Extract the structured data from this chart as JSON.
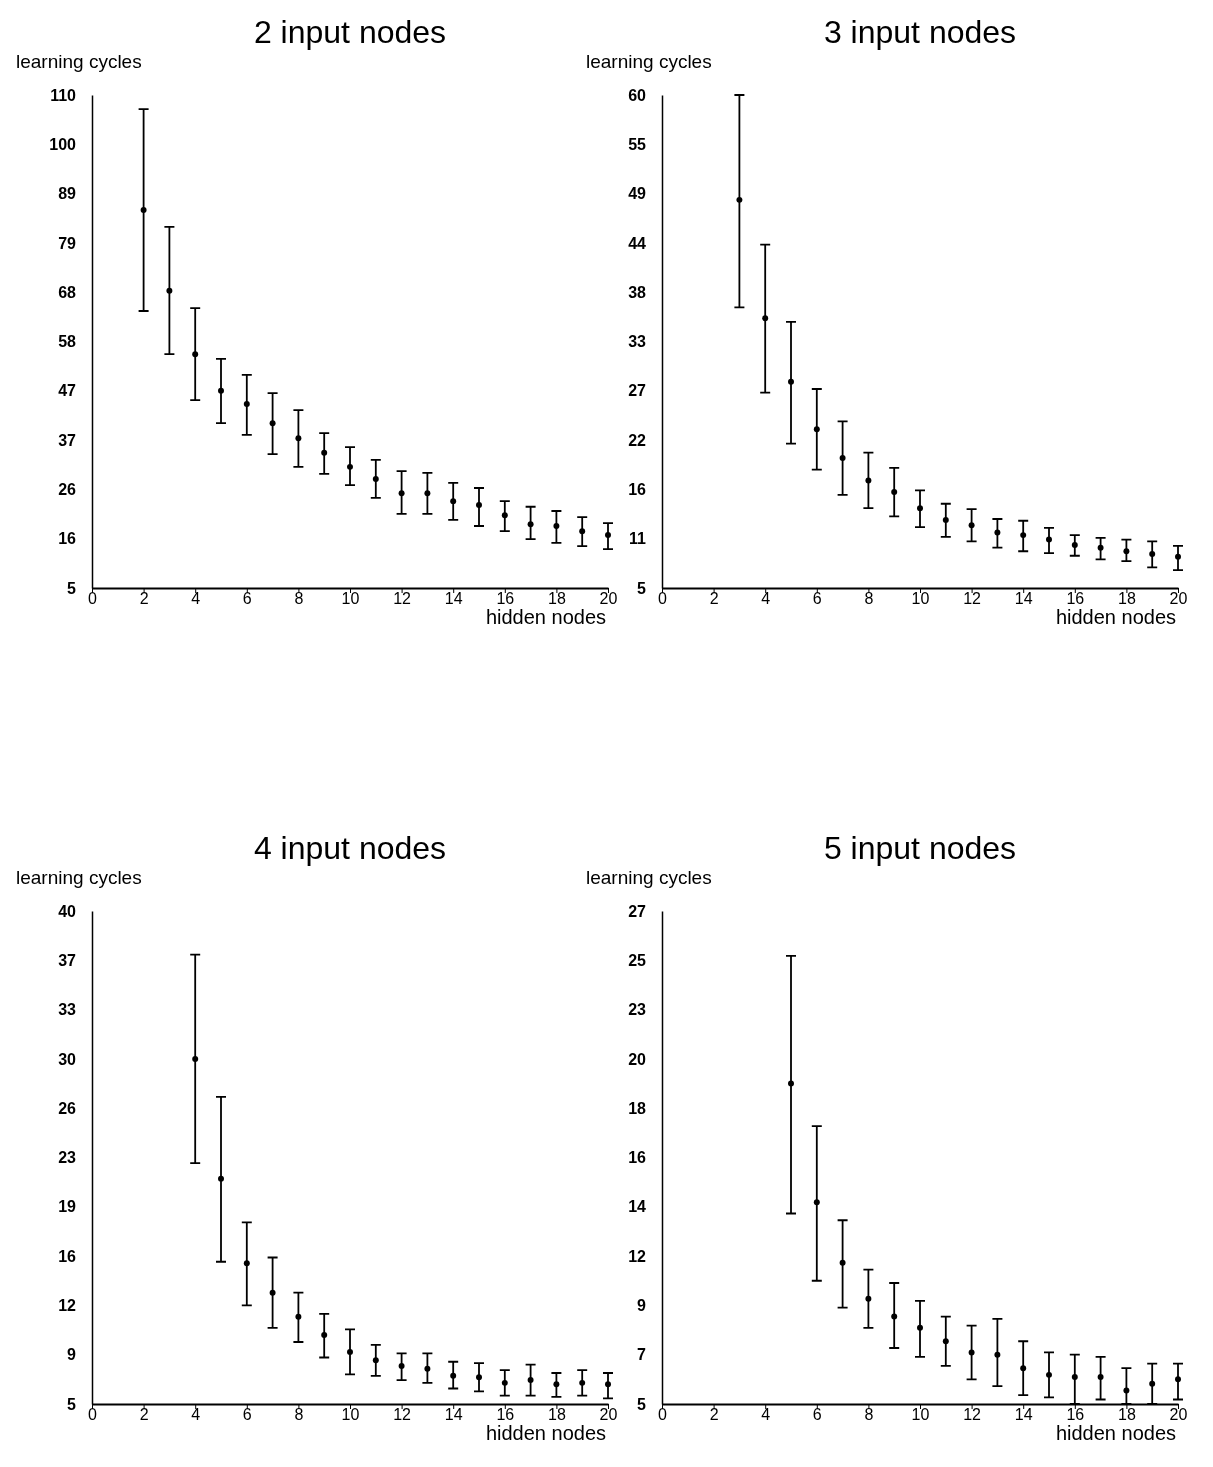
{
  "chart_data": [
    {
      "type": "scatter",
      "title": "2 input nodes",
      "xlabel": "hidden nodes",
      "ylabel": "learning cycles",
      "marker": "circle",
      "xlim": [
        0,
        20
      ],
      "xticks": [
        0,
        2,
        4,
        6,
        8,
        10,
        12,
        14,
        16,
        18,
        20
      ],
      "ylim": [
        5,
        110
      ],
      "yticks": [
        5,
        {
          "value": 15.5,
          "label": "16"
        },
        26,
        {
          "value": 36.5,
          "label": "37"
        },
        47,
        {
          "value": 57.5,
          "label": "58"
        },
        68,
        {
          "value": 78.5,
          "label": "79"
        },
        89,
        {
          "value": 99.5,
          "label": "100"
        },
        110
      ],
      "x": [
        2,
        3,
        4,
        5,
        6,
        7,
        8,
        9,
        10,
        11,
        12,
        13,
        14,
        15,
        16,
        17,
        18,
        19,
        20
      ],
      "values": [
        85.5,
        68.3,
        54.8,
        47.0,
        44.2,
        40.1,
        36.9,
        33.8,
        30.8,
        28.2,
        25.2,
        25.2,
        23.5,
        22.7,
        20.5,
        18.6,
        18.2,
        17.1,
        16.3
      ],
      "errors": [
        [
          64,
          107
        ],
        [
          54.8,
          81.9
        ],
        [
          45,
          64.6
        ],
        [
          40.1,
          53.8
        ],
        [
          37.6,
          50.4
        ],
        [
          33.5,
          46.5
        ],
        [
          30.8,
          42.9
        ],
        [
          29.3,
          38
        ],
        [
          26.9,
          35
        ],
        [
          24.2,
          32.3
        ],
        [
          20.8,
          29.9
        ],
        [
          20.8,
          29.5
        ],
        [
          19.5,
          27.4
        ],
        [
          18.2,
          26.3
        ],
        [
          17.1,
          23.5
        ],
        [
          15.4,
          22.3
        ],
        [
          14.6,
          21.4
        ],
        [
          13.9,
          20.1
        ],
        [
          13.3,
          18.8
        ]
      ]
    },
    {
      "type": "scatter",
      "title": "3 input nodes",
      "xlabel": "hidden nodes",
      "ylabel": "learning cycles",
      "marker": "circle",
      "xlim": [
        0,
        20
      ],
      "xticks": [
        0,
        2,
        4,
        6,
        8,
        10,
        12,
        14,
        16,
        18,
        20
      ],
      "ylim": [
        5,
        60
      ],
      "yticks": [
        5,
        {
          "value": 10.5,
          "label": "11"
        },
        16,
        {
          "value": 21.5,
          "label": "22"
        },
        27,
        {
          "value": 32.5,
          "label": "33"
        },
        38,
        {
          "value": 43.5,
          "label": "44"
        },
        49,
        {
          "value": 54.5,
          "label": "55"
        },
        60
      ],
      "x": [
        3,
        4,
        5,
        6,
        7,
        8,
        9,
        10,
        11,
        12,
        13,
        14,
        15,
        16,
        17,
        18,
        19,
        20
      ],
      "values": [
        48.3,
        35.1,
        28.0,
        22.7,
        19.5,
        17.0,
        15.7,
        13.9,
        12.6,
        12.0,
        11.2,
        10.9,
        10.4,
        9.8,
        9.5,
        9.1,
        8.8,
        8.5
      ],
      "errors": [
        [
          36.3,
          60
        ],
        [
          26.8,
          43.3
        ],
        [
          21.1,
          34.7
        ],
        [
          18.2,
          27.2
        ],
        [
          15.4,
          23.6
        ],
        [
          13.9,
          20.1
        ],
        [
          13,
          18.4
        ],
        [
          11.8,
          15.9
        ],
        [
          10.7,
          14.4
        ],
        [
          10.2,
          13.8
        ],
        [
          9.5,
          12.7
        ],
        [
          9.1,
          12.5
        ],
        [
          8.9,
          11.7
        ],
        [
          8.6,
          10.9
        ],
        [
          8.2,
          10.6
        ],
        [
          8,
          10.4
        ],
        [
          7.3,
          10.2
        ],
        [
          7,
          9.7
        ]
      ]
    },
    {
      "type": "scatter",
      "title": "4 input nodes",
      "xlabel": "hidden nodes",
      "ylabel": "learning cycles",
      "marker": "circle",
      "xlim": [
        0,
        20
      ],
      "xticks": [
        0,
        2,
        4,
        6,
        8,
        10,
        12,
        14,
        16,
        18,
        20
      ],
      "ylim": [
        5,
        40
      ],
      "yticks": [
        5,
        {
          "value": 8.5,
          "label": "9"
        },
        12,
        {
          "value": 15.5,
          "label": "16"
        },
        19,
        {
          "value": 22.5,
          "label": "23"
        },
        26,
        {
          "value": 29.5,
          "label": "30"
        },
        33,
        {
          "value": 36.5,
          "label": "37"
        },
        40
      ],
      "x": [
        4,
        5,
        6,
        7,
        8,
        9,
        10,
        11,
        12,
        13,
        14,
        15,
        16,
        17,
        18,
        19,
        20
      ],
      "values": [
        29.5,
        21.0,
        15.0,
        12.9,
        11.2,
        9.9,
        8.7,
        8.1,
        7.7,
        7.5,
        7.0,
        6.9,
        6.5,
        6.7,
        6.4,
        6.5,
        6.4
      ],
      "errors": [
        [
          22.1,
          36.9
        ],
        [
          15.1,
          26.8
        ],
        [
          12,
          17.9
        ],
        [
          10.4,
          15.4
        ],
        [
          9.4,
          12.9
        ],
        [
          8.3,
          11.4
        ],
        [
          7.1,
          10.3
        ],
        [
          7,
          9.2
        ],
        [
          6.7,
          8.6
        ],
        [
          6.5,
          8.6
        ],
        [
          6.1,
          8
        ],
        [
          5.9,
          7.9
        ],
        [
          5.6,
          7.4
        ],
        [
          5.6,
          7.8
        ],
        [
          5.5,
          7.2
        ],
        [
          5.6,
          7.4
        ],
        [
          5.4,
          7.2
        ]
      ]
    },
    {
      "type": "scatter",
      "title": "5 input nodes",
      "xlabel": "hidden nodes",
      "ylabel": "learning cycles",
      "marker": "circle",
      "xlim": [
        0,
        20
      ],
      "xticks": [
        0,
        2,
        4,
        6,
        8,
        10,
        12,
        14,
        16,
        18,
        20
      ],
      "ylim": [
        5,
        27
      ],
      "yticks": [
        5,
        {
          "value": 7.2,
          "label": "7"
        },
        {
          "value": 9.4,
          "label": "9"
        },
        {
          "value": 11.6,
          "label": "12"
        },
        {
          "value": 13.8,
          "label": "14"
        },
        16,
        {
          "value": 18.2,
          "label": "18"
        },
        {
          "value": 20.4,
          "label": "20"
        },
        {
          "value": 22.6,
          "label": "23"
        },
        {
          "value": 24.8,
          "label": "25"
        },
        27
      ],
      "x": [
        5,
        6,
        7,
        8,
        9,
        10,
        11,
        12,
        13,
        14,
        15,
        16,
        17,
        18,
        19,
        20
      ],
      "values": [
        19.3,
        14.0,
        11.3,
        9.7,
        8.9,
        8.4,
        7.8,
        7.3,
        7.2,
        6.6,
        6.3,
        6.2,
        6.2,
        5.6,
        5.9,
        6.1
      ],
      "errors": [
        [
          13.5,
          25
        ],
        [
          10.5,
          17.4
        ],
        [
          9.3,
          13.2
        ],
        [
          8.4,
          11
        ],
        [
          7.5,
          10.4
        ],
        [
          7.1,
          9.6
        ],
        [
          6.7,
          8.9
        ],
        [
          6.1,
          8.5
        ],
        [
          5.8,
          8.8
        ],
        [
          5.4,
          7.8
        ],
        [
          5.3,
          7.3
        ],
        [
          5,
          7.2
        ],
        [
          5.2,
          7.1
        ],
        [
          5,
          6.6
        ],
        [
          5,
          6.8
        ],
        [
          5.2,
          6.8
        ]
      ]
    }
  ]
}
